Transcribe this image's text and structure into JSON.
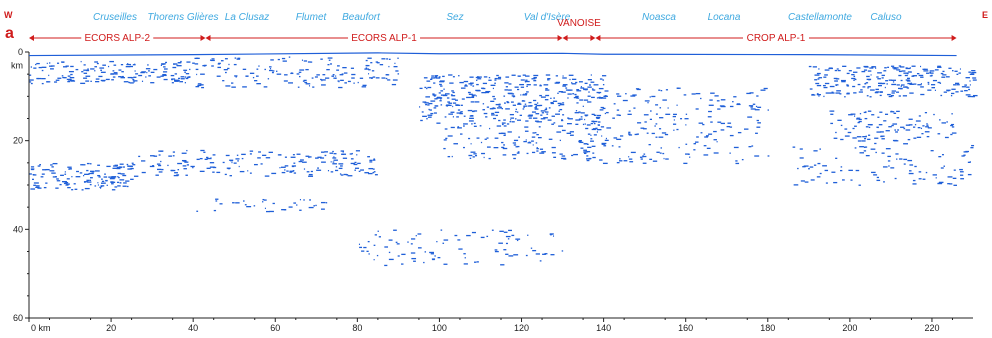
{
  "panel_label": "a",
  "left_end_label": "W",
  "right_end_label": "E",
  "place_names": [
    "Cruseilles",
    "Thorens Glières",
    "La Clusaz",
    "Flumet",
    "Beaufort",
    "Sez",
    "Val d'Isère",
    "Noasca",
    "Locana",
    "Castellamonte",
    "Caluso"
  ],
  "profiles": [
    {
      "label": "ECORS ALP-2",
      "from_km": 0,
      "to_km": 43
    },
    {
      "label": "ECORS ALP-1",
      "from_km": 43,
      "to_km": 130
    },
    {
      "label": "VANOISE",
      "from_km": 130,
      "to_km": 138
    },
    {
      "label": "CROP ALP-1",
      "from_km": 138,
      "to_km": 226
    }
  ],
  "colors": {
    "reflector": "#1f5fd8",
    "place": "#3fa9e0",
    "profile": "#d01c1c",
    "axis": "#202020"
  },
  "chart_data": {
    "type": "scatter",
    "x_unit": "km",
    "y_unit": "km",
    "xlim": [
      0,
      230
    ],
    "ylim": [
      0,
      60
    ],
    "y_inverted": true,
    "x_ticks": [
      "0 km",
      "20",
      "40",
      "60",
      "80",
      "100",
      "120",
      "140",
      "160",
      "180",
      "200",
      "220"
    ],
    "x_tick_values": [
      0,
      20,
      40,
      60,
      80,
      100,
      120,
      140,
      160,
      180,
      200,
      220
    ],
    "y_ticks": [
      "0",
      "km",
      "20",
      "40",
      "60"
    ],
    "y_tick_values": [
      0,
      3,
      20,
      40,
      60
    ],
    "reflector_zones": [
      {
        "x": [
          0,
          40
        ],
        "y": [
          2,
          7
        ],
        "density": 0.9
      },
      {
        "x": [
          40,
          90
        ],
        "y": [
          1,
          8
        ],
        "density": 0.5
      },
      {
        "x": [
          0,
          25
        ],
        "y": [
          25,
          31
        ],
        "density": 1.0
      },
      {
        "x": [
          25,
          85
        ],
        "y": [
          22,
          28
        ],
        "density": 0.55
      },
      {
        "x": [
          40,
          75
        ],
        "y": [
          33,
          36
        ],
        "density": 0.35
      },
      {
        "x": [
          95,
          140
        ],
        "y": [
          5,
          16
        ],
        "density": 0.85
      },
      {
        "x": [
          100,
          140
        ],
        "y": [
          16,
          24
        ],
        "density": 0.45
      },
      {
        "x": [
          135,
          180
        ],
        "y": [
          8,
          25
        ],
        "density": 0.3
      },
      {
        "x": [
          190,
          230
        ],
        "y": [
          3,
          10
        ],
        "density": 0.9
      },
      {
        "x": [
          195,
          225
        ],
        "y": [
          13,
          20
        ],
        "density": 0.55
      },
      {
        "x": [
          185,
          230
        ],
        "y": [
          20,
          30
        ],
        "density": 0.25
      },
      {
        "x": [
          80,
          130
        ],
        "y": [
          40,
          48
        ],
        "density": 0.25
      }
    ]
  }
}
